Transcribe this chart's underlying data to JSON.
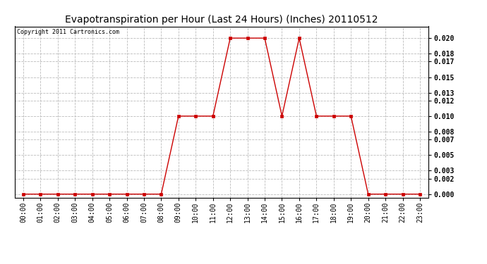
{
  "title": "Evapotranspiration per Hour (Last 24 Hours) (Inches) 20110512",
  "copyright_text": "Copyright 2011 Cartronics.com",
  "hours": [
    "00:00",
    "01:00",
    "02:00",
    "03:00",
    "04:00",
    "05:00",
    "06:00",
    "07:00",
    "08:00",
    "09:00",
    "10:00",
    "11:00",
    "12:00",
    "13:00",
    "14:00",
    "15:00",
    "16:00",
    "17:00",
    "18:00",
    "19:00",
    "20:00",
    "21:00",
    "22:00",
    "23:00"
  ],
  "values": [
    0.0,
    0.0,
    0.0,
    0.0,
    0.0,
    0.0,
    0.0,
    0.0,
    0.0,
    0.01,
    0.01,
    0.01,
    0.02,
    0.02,
    0.02,
    0.01,
    0.02,
    0.01,
    0.01,
    0.01,
    0.0,
    0.0,
    0.0,
    0.0
  ],
  "line_color": "#cc0000",
  "marker_color": "#cc0000",
  "bg_color": "#ffffff",
  "grid_color": "#bbbbbb",
  "yticks": [
    0.0,
    0.002,
    0.003,
    0.005,
    0.007,
    0.008,
    0.01,
    0.012,
    0.013,
    0.015,
    0.017,
    0.018,
    0.02
  ],
  "ylim": [
    -0.0005,
    0.0215
  ],
  "title_fontsize": 10,
  "tick_fontsize": 7,
  "copyright_fontsize": 6
}
